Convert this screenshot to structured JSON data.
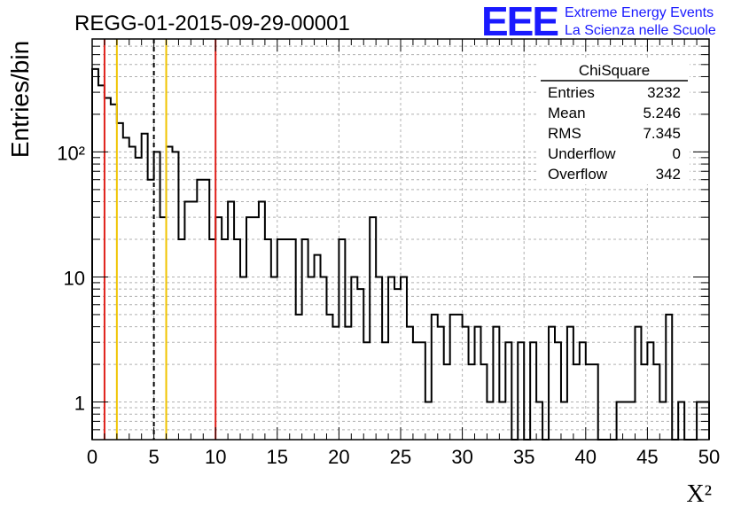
{
  "chart_data": {
    "type": "histogram",
    "title": "REGG-01-2015-09-29-00001",
    "xlabel": "X²",
    "ylabel": "Entries/bin",
    "xlim": [
      0,
      50
    ],
    "ylim": [
      0.5,
      800
    ],
    "y_scale": "log",
    "grid": true,
    "bin_width": 0.5,
    "x_ticks": [
      0,
      5,
      10,
      15,
      20,
      25,
      30,
      35,
      40,
      45,
      50
    ],
    "x_tick_labels": [
      "0",
      "5",
      "10",
      "15",
      "20",
      "25",
      "30",
      "35",
      "40",
      "45",
      "50"
    ],
    "y_ticks": [
      1,
      10,
      100
    ],
    "y_tick_labels": [
      "1",
      "10",
      "10²"
    ],
    "bin_values": [
      460,
      340,
      270,
      240,
      170,
      130,
      110,
      90,
      140,
      60,
      100,
      30,
      110,
      100,
      20,
      40,
      40,
      60,
      60,
      20,
      30,
      20,
      40,
      20,
      10,
      30,
      30,
      40,
      20,
      10,
      20,
      20,
      20,
      5,
      20,
      10,
      15,
      10,
      5,
      4,
      20,
      4,
      10,
      8,
      3,
      30,
      10,
      3,
      10,
      8,
      10,
      4,
      3,
      3,
      1,
      5,
      4,
      2,
      5,
      5,
      4,
      2,
      4,
      2,
      1,
      4,
      1,
      3,
      0,
      3,
      0,
      3,
      1,
      0,
      4,
      3,
      1,
      4,
      2,
      3,
      2,
      2,
      0,
      0,
      0,
      1,
      1,
      1,
      4,
      2,
      3,
      2,
      1,
      5,
      0,
      1,
      0,
      0,
      1,
      1,
      0,
      0,
      1,
      0,
      0,
      0,
      0,
      0,
      0,
      0,
      0,
      0,
      1,
      0,
      1,
      0,
      2,
      0,
      1,
      1,
      1,
      0,
      1,
      0,
      2,
      0,
      0,
      1,
      0,
      0,
      1,
      0,
      0,
      1,
      0,
      0,
      0,
      0,
      0,
      0,
      0,
      0,
      0,
      3,
      3,
      2,
      2,
      2,
      2,
      2
    ],
    "vertical_lines": [
      {
        "x": 1,
        "color": "#e0201a",
        "style": "solid"
      },
      {
        "x": 2,
        "color": "#f0c400",
        "style": "solid"
      },
      {
        "x": 5,
        "color": "#000000",
        "style": "dashed"
      },
      {
        "x": 6,
        "color": "#f0c400",
        "style": "solid"
      },
      {
        "x": 10,
        "color": "#e0201a",
        "style": "solid"
      }
    ],
    "stats": {
      "name": "ChiSquare",
      "rows": [
        {
          "label": "Entries",
          "value": "3232"
        },
        {
          "label": "Mean",
          "value": "5.246"
        },
        {
          "label": "RMS",
          "value": "7.345"
        },
        {
          "label": "Underflow",
          "value": "0"
        },
        {
          "label": "Overflow",
          "value": "342"
        }
      ]
    }
  },
  "logo": {
    "text": "EEE",
    "line1": "Extreme Energy Events",
    "line2": "La Scienza nelle Scuole",
    "color": "#1a1aff"
  }
}
